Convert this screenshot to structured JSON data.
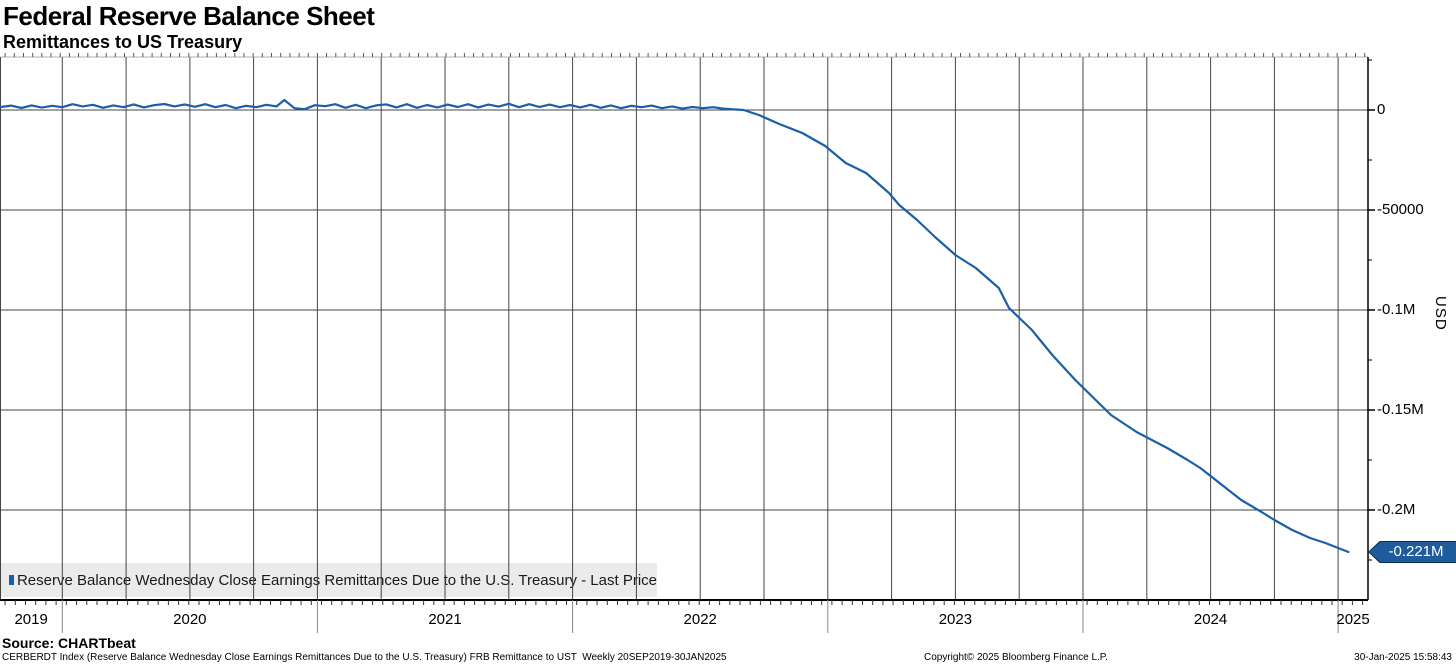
{
  "title": "Federal Reserve Balance Sheet",
  "subtitle": "Remittances to US Treasury",
  "source_line": "Source: CHARTbeat",
  "fine_print": "CERBERDT Index (Reserve Balance Wednesday Close Earnings Remittances Due to the U.S. Treasury) FRB Remittance to UST  Weekly 20SEP2019-30JAN2025",
  "copyright": "Copyright© 2025 Bloomberg Finance L.P.",
  "timestamp": "30-Jan-2025 15:58:43",
  "legend": {
    "marker_color": "#1b5fa8",
    "label": "Reserve Balance Wednesday Close Earnings Remittances Due to the U.S. Treasury - Last Price"
  },
  "last_price": {
    "value": -221000,
    "label": "-0.221M"
  },
  "colors": {
    "line": "#1b5fa8",
    "grid": "#454545",
    "axis": "#000000",
    "tag_fill": "#1e5c9c",
    "tag_border": "#0b2e52",
    "legend_bg": "#ebebeb"
  },
  "chart_data": {
    "type": "line",
    "title": "Federal Reserve Balance Sheet",
    "subtitle": "Remittances to US Treasury",
    "ylabel": "USD",
    "xlabel": "",
    "grid": true,
    "legend_position": "bottom-left",
    "xlim_years": [
      2019.756,
      2025.117
    ],
    "ylim": [
      -245000,
      26500
    ],
    "x_year_labels": [
      "2019",
      "2020",
      "2021",
      "2022",
      "2023",
      "2024",
      "2025"
    ],
    "y_ticks": [
      {
        "v": 0,
        "label": "0"
      },
      {
        "v": -50000,
        "label": "-50000"
      },
      {
        "v": -100000,
        "label": "-0.1M"
      },
      {
        "v": -150000,
        "label": "-0.15M"
      },
      {
        "v": -200000,
        "label": "-0.2M"
      }
    ],
    "y_minor_ticks": [
      25000,
      -25000,
      -75000,
      -125000,
      -175000,
      -225000
    ],
    "series": [
      {
        "name": "Reserve Balance Wednesday Close Earnings Remittances Due to the U.S. Treasury - Last Price",
        "color": "#1b5fa8",
        "last_value_label": "-0.221M",
        "points": [
          [
            2019.76,
            1500
          ],
          [
            2019.8,
            2200
          ],
          [
            2019.84,
            1000
          ],
          [
            2019.88,
            2300
          ],
          [
            2019.92,
            1200
          ],
          [
            2019.96,
            2100
          ],
          [
            2020.0,
            1400
          ],
          [
            2020.04,
            2900
          ],
          [
            2020.08,
            1800
          ],
          [
            2020.12,
            2600
          ],
          [
            2020.16,
            1100
          ],
          [
            2020.2,
            2300
          ],
          [
            2020.24,
            1400
          ],
          [
            2020.28,
            2800
          ],
          [
            2020.32,
            1300
          ],
          [
            2020.36,
            2400
          ],
          [
            2020.4,
            3000
          ],
          [
            2020.44,
            1800
          ],
          [
            2020.48,
            2800
          ],
          [
            2020.52,
            1600
          ],
          [
            2020.56,
            2900
          ],
          [
            2020.6,
            1400
          ],
          [
            2020.64,
            2500
          ],
          [
            2020.68,
            900
          ],
          [
            2020.72,
            2100
          ],
          [
            2020.76,
            1400
          ],
          [
            2020.8,
            2600
          ],
          [
            2020.84,
            1800
          ],
          [
            2020.87,
            5000
          ],
          [
            2020.91,
            900
          ],
          [
            2020.95,
            400
          ],
          [
            2020.99,
            2400
          ],
          [
            2021.03,
            1900
          ],
          [
            2021.07,
            2900
          ],
          [
            2021.11,
            1100
          ],
          [
            2021.15,
            2600
          ],
          [
            2021.19,
            900
          ],
          [
            2021.23,
            2300
          ],
          [
            2021.27,
            2800
          ],
          [
            2021.31,
            1300
          ],
          [
            2021.35,
            2900
          ],
          [
            2021.39,
            1100
          ],
          [
            2021.43,
            2500
          ],
          [
            2021.47,
            1300
          ],
          [
            2021.51,
            2700
          ],
          [
            2021.55,
            1500
          ],
          [
            2021.59,
            2900
          ],
          [
            2021.63,
            1300
          ],
          [
            2021.67,
            2700
          ],
          [
            2021.71,
            1700
          ],
          [
            2021.75,
            3100
          ],
          [
            2021.79,
            1400
          ],
          [
            2021.83,
            2900
          ],
          [
            2021.87,
            1500
          ],
          [
            2021.91,
            2700
          ],
          [
            2021.95,
            1400
          ],
          [
            2021.99,
            2500
          ],
          [
            2022.03,
            1300
          ],
          [
            2022.07,
            2600
          ],
          [
            2022.11,
            1100
          ],
          [
            2022.15,
            2300
          ],
          [
            2022.19,
            900
          ],
          [
            2022.23,
            2100
          ],
          [
            2022.27,
            1400
          ],
          [
            2022.31,
            2200
          ],
          [
            2022.35,
            900
          ],
          [
            2022.39,
            1800
          ],
          [
            2022.43,
            700
          ],
          [
            2022.47,
            1500
          ],
          [
            2022.51,
            900
          ],
          [
            2022.55,
            1400
          ],
          [
            2022.59,
            700
          ],
          [
            2022.63,
            300
          ],
          [
            2022.67,
            0
          ],
          [
            2022.73,
            -2500
          ],
          [
            2022.81,
            -7000
          ],
          [
            2022.9,
            -11500
          ],
          [
            2022.99,
            -18000
          ],
          [
            2023.07,
            -26500
          ],
          [
            2023.15,
            -31500
          ],
          [
            2023.24,
            -41500
          ],
          [
            2023.28,
            -47500
          ],
          [
            2023.35,
            -55000
          ],
          [
            2023.42,
            -63500
          ],
          [
            2023.5,
            -72500
          ],
          [
            2023.58,
            -79000
          ],
          [
            2023.67,
            -89000
          ],
          [
            2023.71,
            -99000
          ],
          [
            2023.8,
            -110000
          ],
          [
            2023.88,
            -122500
          ],
          [
            2023.97,
            -135000
          ],
          [
            2024.05,
            -145000
          ],
          [
            2024.11,
            -152500
          ],
          [
            2024.21,
            -161000
          ],
          [
            2024.33,
            -169000
          ],
          [
            2024.41,
            -175000
          ],
          [
            2024.46,
            -179000
          ],
          [
            2024.5,
            -183000
          ],
          [
            2024.57,
            -190000
          ],
          [
            2024.62,
            -195000
          ],
          [
            2024.7,
            -201000
          ],
          [
            2024.75,
            -205000
          ],
          [
            2024.82,
            -210000
          ],
          [
            2024.89,
            -214000
          ],
          [
            2024.95,
            -216500
          ],
          [
            2025.04,
            -221000
          ]
        ]
      }
    ]
  }
}
